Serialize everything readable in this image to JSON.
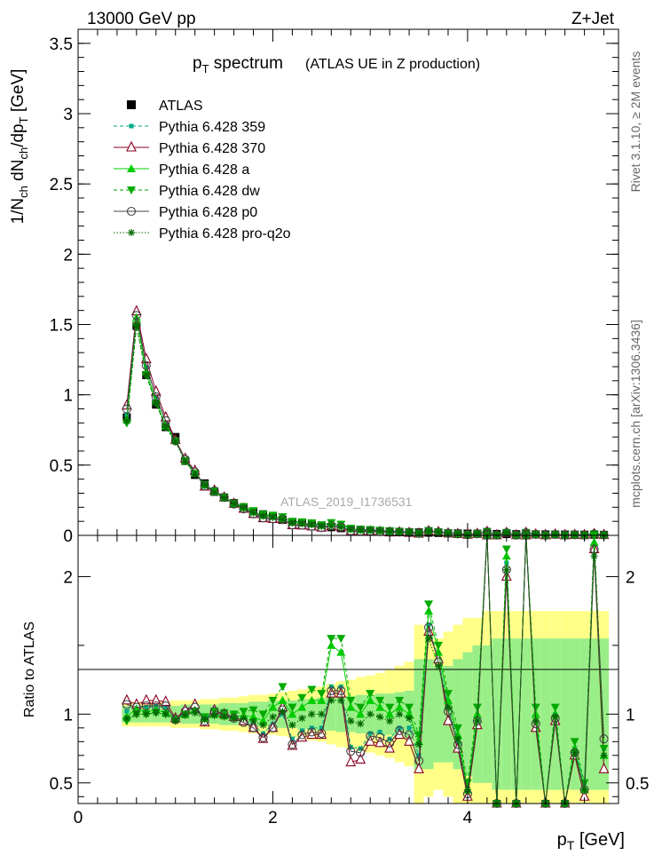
{
  "header": {
    "left": "13000 GeV pp",
    "right": "Z+Jet"
  },
  "side_labels": {
    "rivet": "Rivet 3.1.10, ≥ 2M events",
    "mcplots": "mcplots.cern.ch [arXiv:1306.3436]"
  },
  "watermark": "ATLAS_2019_I1736531",
  "chart_data": [
    {
      "panel": "main",
      "type": "scatter",
      "title": "p_T spectrum (ATLAS UE in Z production)",
      "title_main": "p",
      "title_sub": "T",
      "title_rest": " spectrum",
      "title_note": "(ATLAS UE in Z production)",
      "ylabel": "1/N_ch dN_ch/dp_T [GeV]",
      "xlim": [
        0,
        5.55
      ],
      "ylim": [
        0,
        3.6
      ],
      "x_ticks": [
        0,
        2,
        4
      ],
      "y_ticks": [
        0,
        0.5,
        1,
        1.5,
        2,
        2.5,
        3,
        3.5
      ],
      "y_tick_labels": [
        "0",
        "0.5",
        "1",
        "1.5",
        "2",
        "2.5",
        "3",
        "3.5"
      ],
      "x": [
        0.5,
        0.6,
        0.7,
        0.8,
        0.9,
        1.0,
        1.1,
        1.2,
        1.3,
        1.4,
        1.5,
        1.6,
        1.7,
        1.8,
        1.9,
        2.0,
        2.1,
        2.2,
        2.3,
        2.4,
        2.5,
        2.6,
        2.7,
        2.8,
        2.9,
        3.0,
        3.1,
        3.2,
        3.3,
        3.4,
        3.5,
        3.6,
        3.7,
        3.8,
        3.9,
        4.0,
        4.1,
        4.2,
        4.3,
        4.4,
        4.5,
        4.6,
        4.7,
        4.8,
        4.9,
        5.0,
        5.1,
        5.2,
        5.3,
        5.4
      ],
      "data_points": [
        0.84,
        1.49,
        1.14,
        0.93,
        0.77,
        0.7,
        0.53,
        0.43,
        0.37,
        0.31,
        0.27,
        0.23,
        0.2,
        0.17,
        0.15,
        0.13,
        0.11,
        0.095,
        0.085,
        0.075,
        0.065,
        0.058,
        0.051,
        0.045,
        0.04,
        0.036,
        0.032,
        0.029,
        0.026,
        0.023,
        0.021,
        0.019,
        0.017,
        0.015,
        0.014,
        0.013,
        0.012,
        0.011,
        0.01,
        0.009,
        0.0085,
        0.008,
        0.0075,
        0.007,
        0.0065,
        0.006,
        0.0055,
        0.005,
        0.0045,
        0.004
      ],
      "legend": [
        {
          "name": "ATLAS",
          "color": "#000000",
          "marker": "square-filled",
          "line": "none"
        },
        {
          "name": "Pythia 6.428 359",
          "color": "#00aa88",
          "marker": "square-small",
          "line": "dashed"
        },
        {
          "name": "Pythia 6.428 370",
          "color": "#880022",
          "marker": "triangle-open",
          "line": "solid"
        },
        {
          "name": "Pythia 6.428 a",
          "color": "#00cc00",
          "marker": "triangle-filled",
          "line": "solid"
        },
        {
          "name": "Pythia 6.428 dw",
          "color": "#00aa00",
          "marker": "triangle-down-filled",
          "line": "dashed"
        },
        {
          "name": "Pythia 6.428 p0",
          "color": "#444444",
          "marker": "circle-open",
          "line": "solid"
        },
        {
          "name": "Pythia 6.428 pro-q2o",
          "color": "#006600",
          "marker": "star",
          "line": "dotted"
        }
      ],
      "legend_placement": "top-left"
    },
    {
      "panel": "ratio",
      "type": "line",
      "ylabel": "Ratio to ATLAS",
      "xlabel": "p_T [GeV]",
      "xlabel_main": "p",
      "xlabel_sub": "T",
      "xlabel_rest": " [GeV]",
      "xlim": [
        0,
        5.55
      ],
      "ylim": [
        0.35,
        2.3
      ],
      "x_ticks": [
        0,
        2,
        4
      ],
      "x_tick_labels": [
        "0",
        "2",
        "4"
      ],
      "y_ticks": [
        0.5,
        1,
        2
      ],
      "y_tick_labels": [
        "0.5",
        "1",
        "2"
      ],
      "x": [
        0.5,
        0.6,
        0.7,
        0.8,
        0.9,
        1.0,
        1.1,
        1.2,
        1.3,
        1.4,
        1.5,
        1.6,
        1.7,
        1.8,
        1.9,
        2.0,
        2.1,
        2.2,
        2.3,
        2.4,
        2.5,
        2.6,
        2.7,
        2.8,
        2.9,
        3.0,
        3.1,
        3.2,
        3.3,
        3.4,
        3.5,
        3.6,
        3.7,
        3.8,
        3.9,
        4.0,
        4.1,
        4.2,
        4.3,
        4.4,
        4.5,
        4.6,
        4.7,
        4.8,
        4.9,
        5.0,
        5.1,
        5.2,
        5.3,
        5.4
      ],
      "band_yellow_halfwidth": [
        0.09,
        0.09,
        0.09,
        0.09,
        0.09,
        0.1,
        0.1,
        0.1,
        0.11,
        0.11,
        0.12,
        0.12,
        0.13,
        0.14,
        0.14,
        0.15,
        0.16,
        0.17,
        0.18,
        0.19,
        0.2,
        0.22,
        0.24,
        0.25,
        0.27,
        0.28,
        0.3,
        0.32,
        0.35,
        0.38,
        0.65,
        0.6,
        0.55,
        0.6,
        0.65,
        0.7,
        0.7,
        0.75,
        0.75,
        0.75,
        0.75,
        0.75,
        0.75,
        0.75,
        0.75,
        0.75,
        0.75,
        0.75,
        0.75,
        0.75
      ],
      "band_green_halfwidth": [
        0.06,
        0.06,
        0.06,
        0.06,
        0.06,
        0.06,
        0.07,
        0.07,
        0.07,
        0.07,
        0.08,
        0.08,
        0.08,
        0.09,
        0.09,
        0.1,
        0.1,
        0.1,
        0.11,
        0.11,
        0.12,
        0.12,
        0.13,
        0.13,
        0.14,
        0.14,
        0.15,
        0.15,
        0.16,
        0.17,
        0.4,
        0.4,
        0.35,
        0.35,
        0.4,
        0.45,
        0.5,
        0.5,
        0.55,
        0.55,
        0.55,
        0.55,
        0.55,
        0.55,
        0.55,
        0.55,
        0.55,
        0.55,
        0.55,
        0.55
      ],
      "series": [
        {
          "name": "Pythia 6.428 359",
          "color": "#00aa88",
          "line": "dashed",
          "marker": "square-small",
          "values": [
            1.02,
            1.07,
            1.05,
            1.06,
            1.05,
            0.96,
            1.02,
            1.06,
            0.97,
            1.02,
            1.0,
            0.98,
            0.96,
            0.92,
            0.86,
            0.93,
            1.0,
            0.82,
            0.88,
            0.9,
            0.9,
            1.2,
            1.2,
            0.76,
            0.75,
            0.86,
            0.87,
            0.82,
            0.9,
            0.9,
            0.7,
            1.65,
            1.4,
            1.05,
            0.8,
            0.42,
            0.95,
            2.4,
            0.2,
            2.1,
            0.3,
            2.4,
            0.95,
            0.2,
            1.0,
            0.25,
            0.75,
            0.5,
            2.2,
            0.75
          ]
        },
        {
          "name": "Pythia 6.428 370",
          "color": "#880022",
          "line": "solid",
          "marker": "triangle-open",
          "values": [
            1.1,
            1.07,
            1.1,
            1.1,
            1.09,
            0.97,
            1.03,
            1.07,
            0.94,
            1.03,
            1.0,
            0.98,
            0.95,
            0.9,
            0.82,
            0.9,
            1.05,
            0.77,
            0.83,
            0.85,
            0.85,
            1.15,
            1.15,
            0.65,
            0.67,
            0.8,
            0.79,
            0.75,
            0.85,
            0.8,
            0.6,
            1.6,
            1.4,
            0.95,
            0.75,
            0.4,
            0.92,
            2.3,
            0.15,
            2.0,
            0.2,
            2.3,
            0.9,
            0.15,
            0.95,
            0.2,
            0.7,
            0.4,
            2.2,
            0.6
          ]
        },
        {
          "name": "Pythia 6.428 a",
          "color": "#00cc00",
          "line": "solid",
          "marker": "triangle-filled",
          "values": [
            0.98,
            1.04,
            1.02,
            1.03,
            1.01,
            0.97,
            1.0,
            1.03,
            0.97,
            1.0,
            0.99,
            0.98,
            0.99,
            0.98,
            0.95,
            1.05,
            1.1,
            1.0,
            1.05,
            1.1,
            1.1,
            1.5,
            1.45,
            1.05,
            1.0,
            1.1,
            1.05,
            1.0,
            1.05,
            1.0,
            0.8,
            1.75,
            1.45,
            1.1,
            0.85,
            0.45,
            1.0,
            2.45,
            0.25,
            2.15,
            0.3,
            2.45,
            1.0,
            0.25,
            1.0,
            0.3,
            0.75,
            0.45,
            2.25,
            0.7
          ]
        },
        {
          "name": "Pythia 6.428 dw",
          "color": "#00aa00",
          "line": "dashed",
          "marker": "triangle-down-filled",
          "values": [
            0.95,
            1.0,
            1.0,
            1.01,
            1.0,
            0.96,
            1.0,
            1.02,
            0.98,
            1.02,
            1.01,
            1.0,
            1.02,
            1.03,
            1.0,
            1.1,
            1.2,
            1.05,
            1.12,
            1.18,
            1.15,
            1.55,
            1.55,
            1.1,
            1.05,
            1.15,
            1.1,
            1.05,
            1.1,
            1.05,
            0.85,
            1.8,
            1.5,
            1.15,
            0.9,
            0.5,
            1.05,
            2.5,
            0.3,
            2.2,
            0.35,
            2.5,
            1.05,
            0.3,
            1.05,
            0.35,
            0.8,
            0.5,
            2.3,
            0.75
          ]
        },
        {
          "name": "Pythia 6.428 p0",
          "color": "#444444",
          "line": "solid",
          "marker": "circle-open",
          "values": [
            1.07,
            1.05,
            1.06,
            1.06,
            1.06,
            0.96,
            1.02,
            1.05,
            0.95,
            1.02,
            1.0,
            0.97,
            0.94,
            0.9,
            0.83,
            0.9,
            1.03,
            0.78,
            0.85,
            0.87,
            0.86,
            1.17,
            1.17,
            0.73,
            0.72,
            0.84,
            0.83,
            0.79,
            0.88,
            0.85,
            0.66,
            1.63,
            1.38,
            1.02,
            0.78,
            0.42,
            0.95,
            2.35,
            0.18,
            2.05,
            0.25,
            2.35,
            0.93,
            0.18,
            0.97,
            0.23,
            0.72,
            0.45,
            2.2,
            0.82
          ]
        },
        {
          "name": "Pythia 6.428 pro-q2o",
          "color": "#006600",
          "line": "dotted",
          "marker": "star",
          "values": [
            0.97,
            1.0,
            1.0,
            1.01,
            1.0,
            0.95,
            0.99,
            1.01,
            0.96,
            0.99,
            0.98,
            0.97,
            0.97,
            0.95,
            0.92,
            0.98,
            1.02,
            0.92,
            0.97,
            1.0,
            1.0,
            1.1,
            1.1,
            0.95,
            0.93,
            1.0,
            0.98,
            0.95,
            1.0,
            0.97,
            0.78,
            1.55,
            1.35,
            1.05,
            0.82,
            0.45,
            0.95,
            2.3,
            0.25,
            2.05,
            0.3,
            2.3,
            0.95,
            0.25,
            0.98,
            0.3,
            0.72,
            0.45,
            2.15,
            0.7
          ]
        }
      ]
    }
  ]
}
